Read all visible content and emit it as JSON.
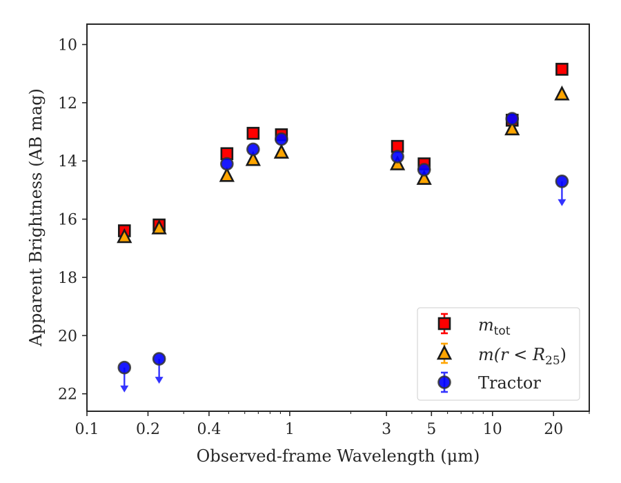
{
  "chart_data": {
    "type": "scatter",
    "xlabel": "Observed-frame Wavelength (μm)",
    "ylabel": "Apparent Brightness (AB mag)",
    "xscale": "log",
    "xlim": [
      0.1,
      30
    ],
    "ylim": [
      22.6,
      9.3
    ],
    "y_inverted": true,
    "grid": false,
    "legend_position": "lower right",
    "x_ticks": [
      {
        "value": 0.1,
        "label": "0.1"
      },
      {
        "value": 0.2,
        "label": "0.2"
      },
      {
        "value": 0.4,
        "label": "0.4"
      },
      {
        "value": 1,
        "label": "1"
      },
      {
        "value": 3,
        "label": "3"
      },
      {
        "value": 5,
        "label": "5"
      },
      {
        "value": 10,
        "label": "10"
      },
      {
        "value": 20,
        "label": "20"
      }
    ],
    "y_ticks": [
      {
        "value": 10,
        "label": "10"
      },
      {
        "value": 12,
        "label": "12"
      },
      {
        "value": 14,
        "label": "14"
      },
      {
        "value": 16,
        "label": "16"
      },
      {
        "value": 18,
        "label": "18"
      },
      {
        "value": 20,
        "label": "20"
      },
      {
        "value": 22,
        "label": "22"
      }
    ],
    "series": [
      {
        "name": "m_tot",
        "legend_main": "m",
        "legend_sub": "tot",
        "marker": "square",
        "color": "#ff0000",
        "errcolor": "#ff0000",
        "x": [
          0.153,
          0.227,
          0.49,
          0.66,
          0.91,
          3.4,
          4.6,
          12.5,
          22.0
        ],
        "y": [
          16.4,
          16.2,
          13.75,
          13.05,
          13.1,
          13.5,
          14.1,
          12.6,
          10.85
        ],
        "upper_limit": [
          false,
          false,
          false,
          false,
          false,
          false,
          false,
          false,
          false
        ]
      },
      {
        "name": "m(r < R_25)",
        "legend_main": "m(r < R",
        "legend_sub": "25",
        "legend_close": ")",
        "marker": "triangle",
        "color": "#ffa500",
        "errcolor": "#ffa500",
        "x": [
          0.153,
          0.227,
          0.49,
          0.66,
          0.91,
          3.4,
          4.6,
          12.5,
          22.0
        ],
        "y": [
          16.6,
          16.3,
          14.5,
          13.95,
          13.7,
          14.1,
          14.6,
          12.9,
          11.7
        ],
        "upper_limit": [
          false,
          false,
          false,
          false,
          false,
          false,
          false,
          false,
          false
        ]
      },
      {
        "name": "Tractor",
        "marker": "circle",
        "color": "#0000ff",
        "errcolor": "#3333ff",
        "x": [
          0.153,
          0.227,
          0.49,
          0.66,
          0.91,
          3.4,
          4.6,
          12.5,
          22.0
        ],
        "y": [
          21.1,
          20.8,
          14.1,
          13.6,
          13.25,
          13.85,
          14.3,
          12.55,
          14.7
        ],
        "upper_limit": [
          true,
          true,
          false,
          false,
          false,
          false,
          false,
          false,
          true
        ]
      }
    ]
  }
}
